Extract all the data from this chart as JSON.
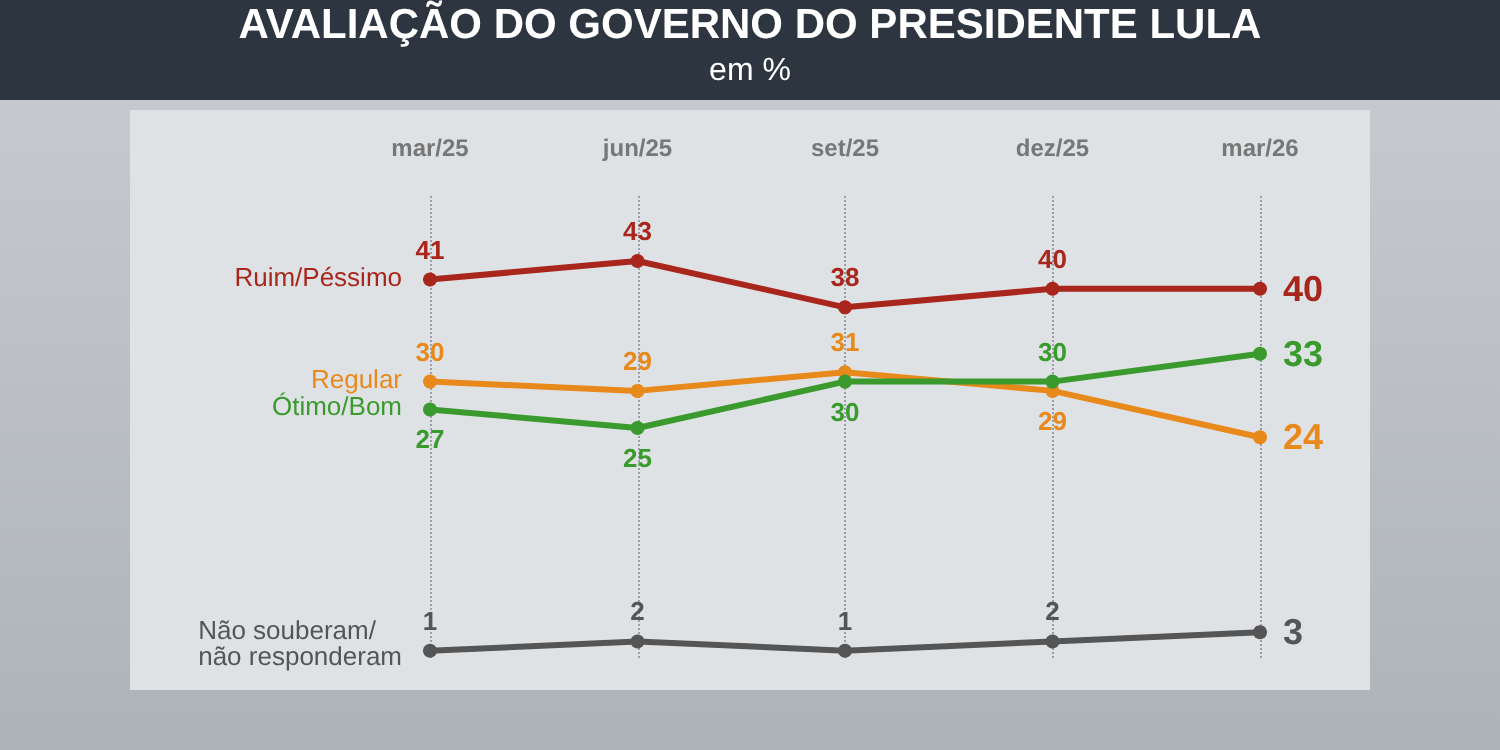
{
  "chart_data": {
    "type": "line",
    "title": "AVALIAÇÃO DO GOVERNO DO PRESIDENTE LULA",
    "subtitle": "em %",
    "categories": [
      "mar/25",
      "jun/25",
      "set/25",
      "dez/25",
      "mar/26"
    ],
    "series": [
      {
        "name": "Ruim/Péssimo",
        "color": "#a8261c",
        "values": [
          41,
          43,
          38,
          40,
          40
        ]
      },
      {
        "name": "Regular",
        "color": "#e8891c",
        "values": [
          30,
          29,
          31,
          29,
          24
        ]
      },
      {
        "name": "Ótimo/Bom",
        "color": "#3a9a2e",
        "values": [
          27,
          25,
          30,
          30,
          33
        ]
      },
      {
        "name": "Não souberam/ não responderam",
        "color": "#555555",
        "values": [
          1,
          2,
          1,
          2,
          3
        ]
      }
    ],
    "data_labels": true,
    "grid": "x",
    "legend": false,
    "marker": "circle",
    "line_style": "solid"
  }
}
